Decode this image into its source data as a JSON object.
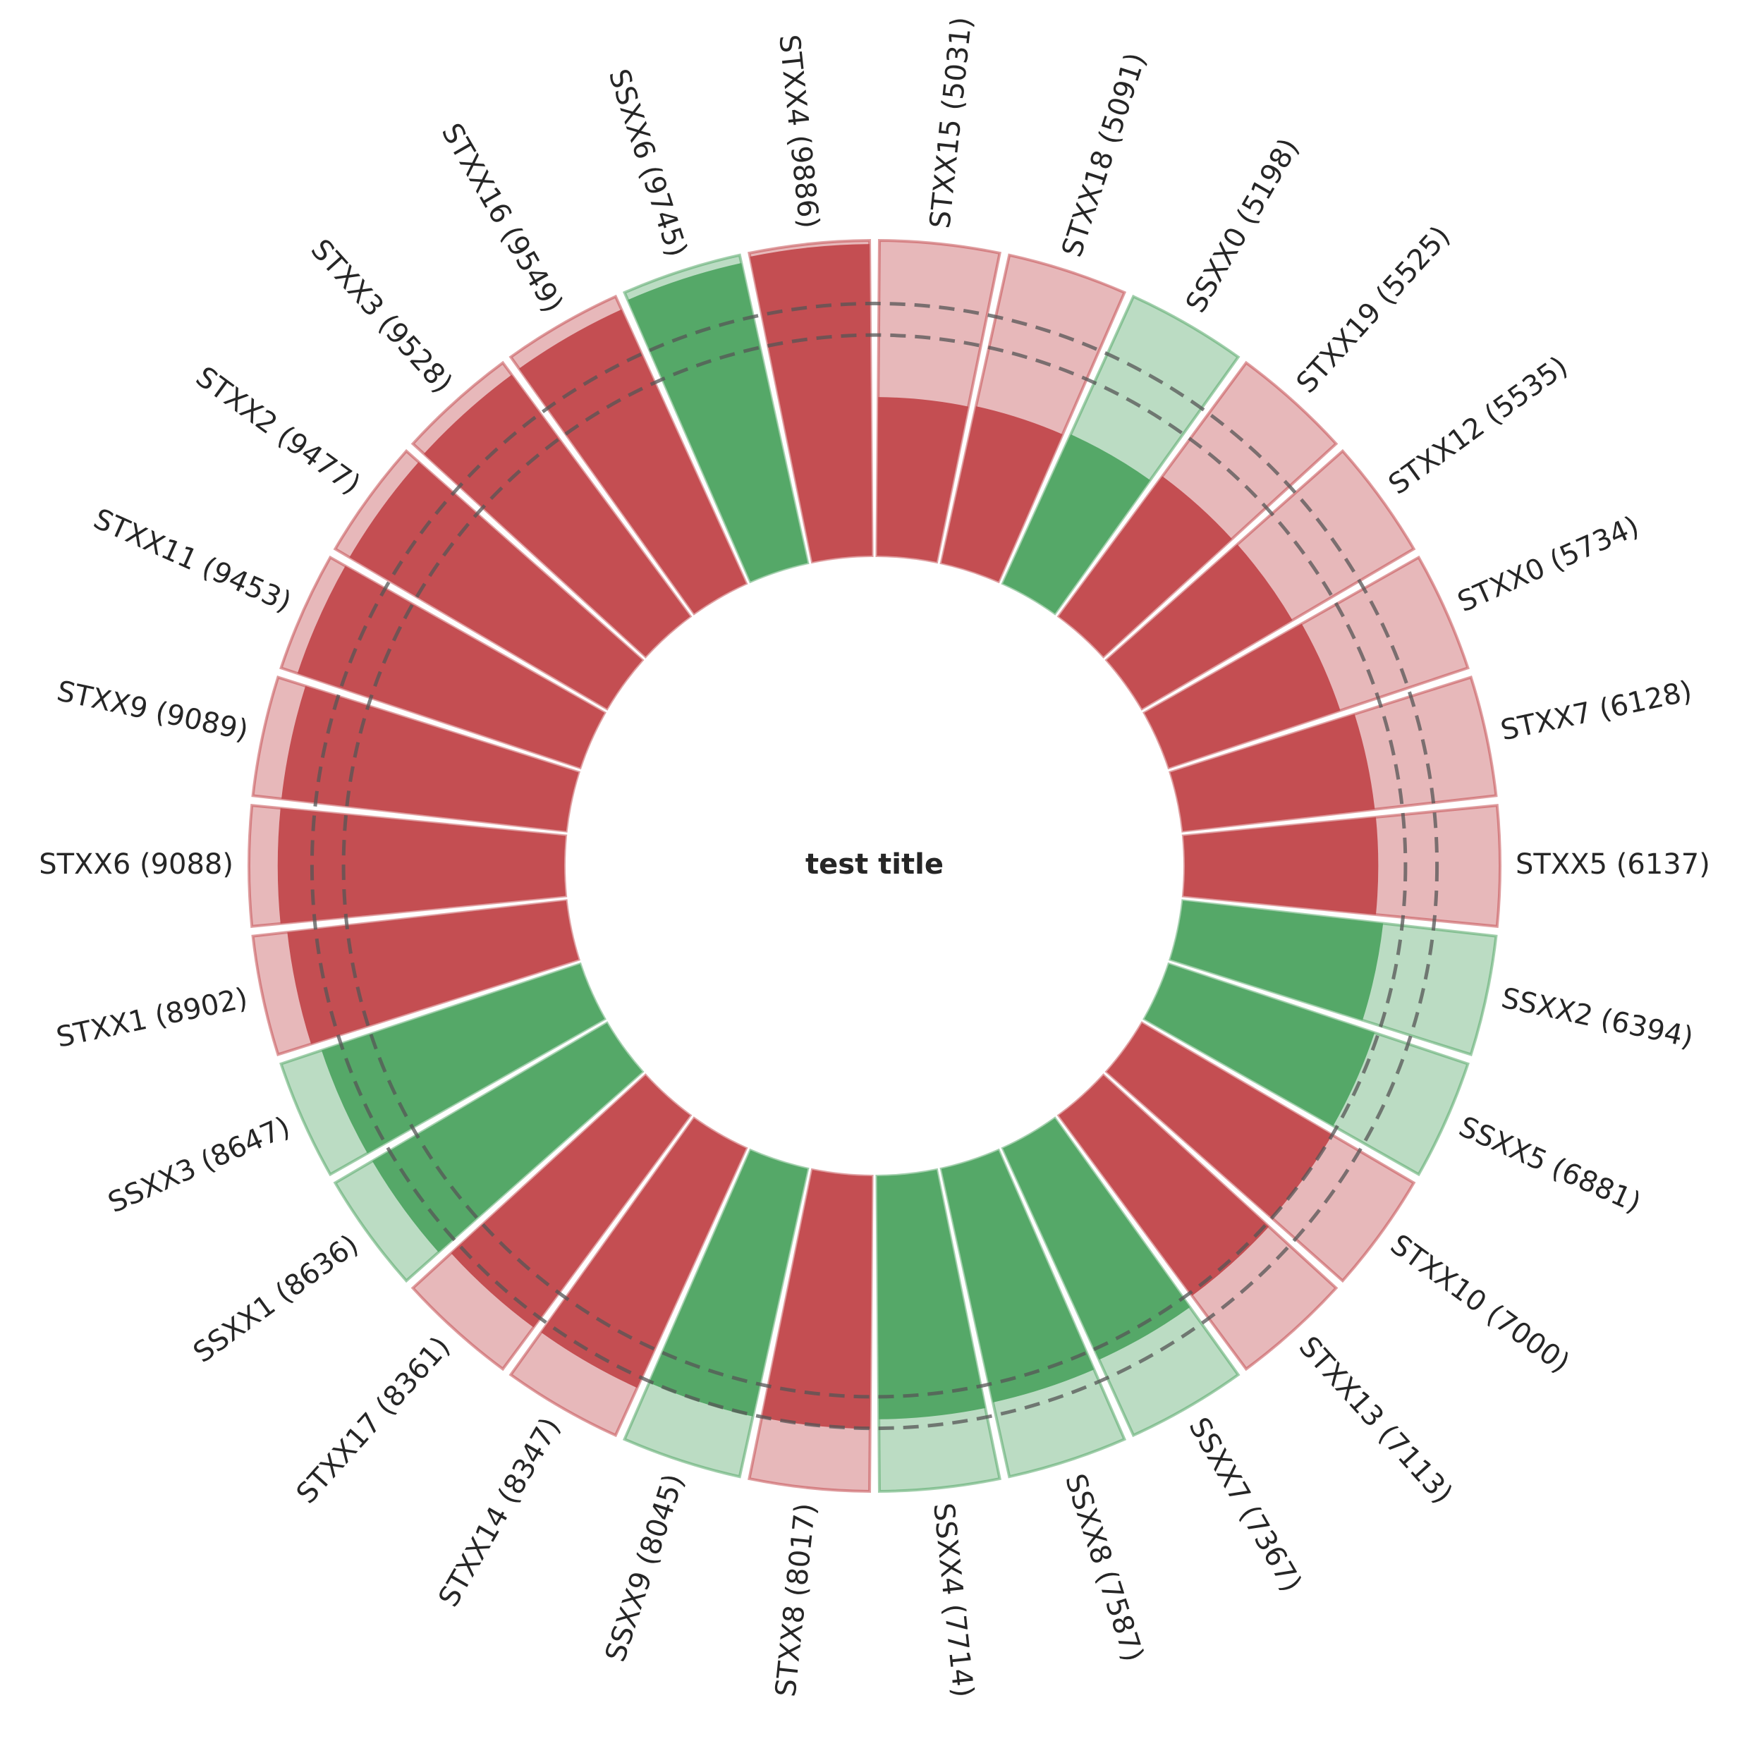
{
  "chart_data": {
    "type": "bar",
    "layout": "radial",
    "title": "test title",
    "categories": [
      "STXX5",
      "SSXX2",
      "SSXX5",
      "STXX10",
      "STXX13",
      "SSXX7",
      "SSXX8",
      "SSXX4",
      "STXX8",
      "SSXX9",
      "STXX14",
      "STXX17",
      "SSXX1",
      "SSXX3",
      "STXX1",
      "STXX6",
      "STXX9",
      "STXX11",
      "STXX2",
      "STXX3",
      "STXX16",
      "SSXX6",
      "STXX4",
      "STXX15",
      "STXX18",
      "SSXX0",
      "STXX19",
      "STXX12",
      "STXX0",
      "STXX7"
    ],
    "values": [
      6137,
      6394,
      6881,
      7000,
      7113,
      7367,
      7587,
      7714,
      8017,
      8045,
      8347,
      8361,
      8636,
      8647,
      8902,
      9088,
      9089,
      9453,
      9477,
      9528,
      9549,
      9745,
      9886,
      5031,
      5091,
      5198,
      5525,
      5535,
      5734,
      6128
    ],
    "labels": [
      "STXX5 (6137)",
      "SSXX2 (6394)",
      "SSXX5 (6881)",
      "STXX10 (7000)",
      "STXX13 (7113)",
      "SSXX7 (7367)",
      "SSXX8 (7587)",
      "SSXX4 (7714)",
      "STXX8 (8017)",
      "SSXX9 (8045)",
      "STXX14 (8347)",
      "STXX17 (8361)",
      "SSXX1 (8636)",
      "SSXX3 (8647)",
      "STXX1 (8902)",
      "STXX6 (9088)",
      "STXX9 (9089)",
      "STXX11 (9453)",
      "STXX2 (9477)",
      "STXX3 (9528)",
      "STXX16 (9549)",
      "SSXX6 (9745)",
      "STXX4 (9886)",
      "STXX15 (5031)",
      "STXX18 (5091)",
      "SSXX0 (5198)",
      "STXX19 (5525)",
      "STXX12 (5535)",
      "STXX0 (5734)",
      "STXX7 (6128)"
    ],
    "groups": [
      "ST",
      "SS",
      "SS",
      "ST",
      "ST",
      "SS",
      "SS",
      "SS",
      "ST",
      "SS",
      "ST",
      "ST",
      "SS",
      "SS",
      "ST",
      "ST",
      "ST",
      "ST",
      "ST",
      "ST",
      "ST",
      "SS",
      "ST",
      "ST",
      "ST",
      "SS",
      "ST",
      "ST",
      "ST",
      "ST"
    ],
    "group_colors": {
      "ST": "#c44e52",
      "SS": "#55a868"
    },
    "bar_range": [
      0,
      10000
    ],
    "reference_rings": [
      7000,
      8000
    ],
    "grid": false,
    "legend": "none"
  }
}
